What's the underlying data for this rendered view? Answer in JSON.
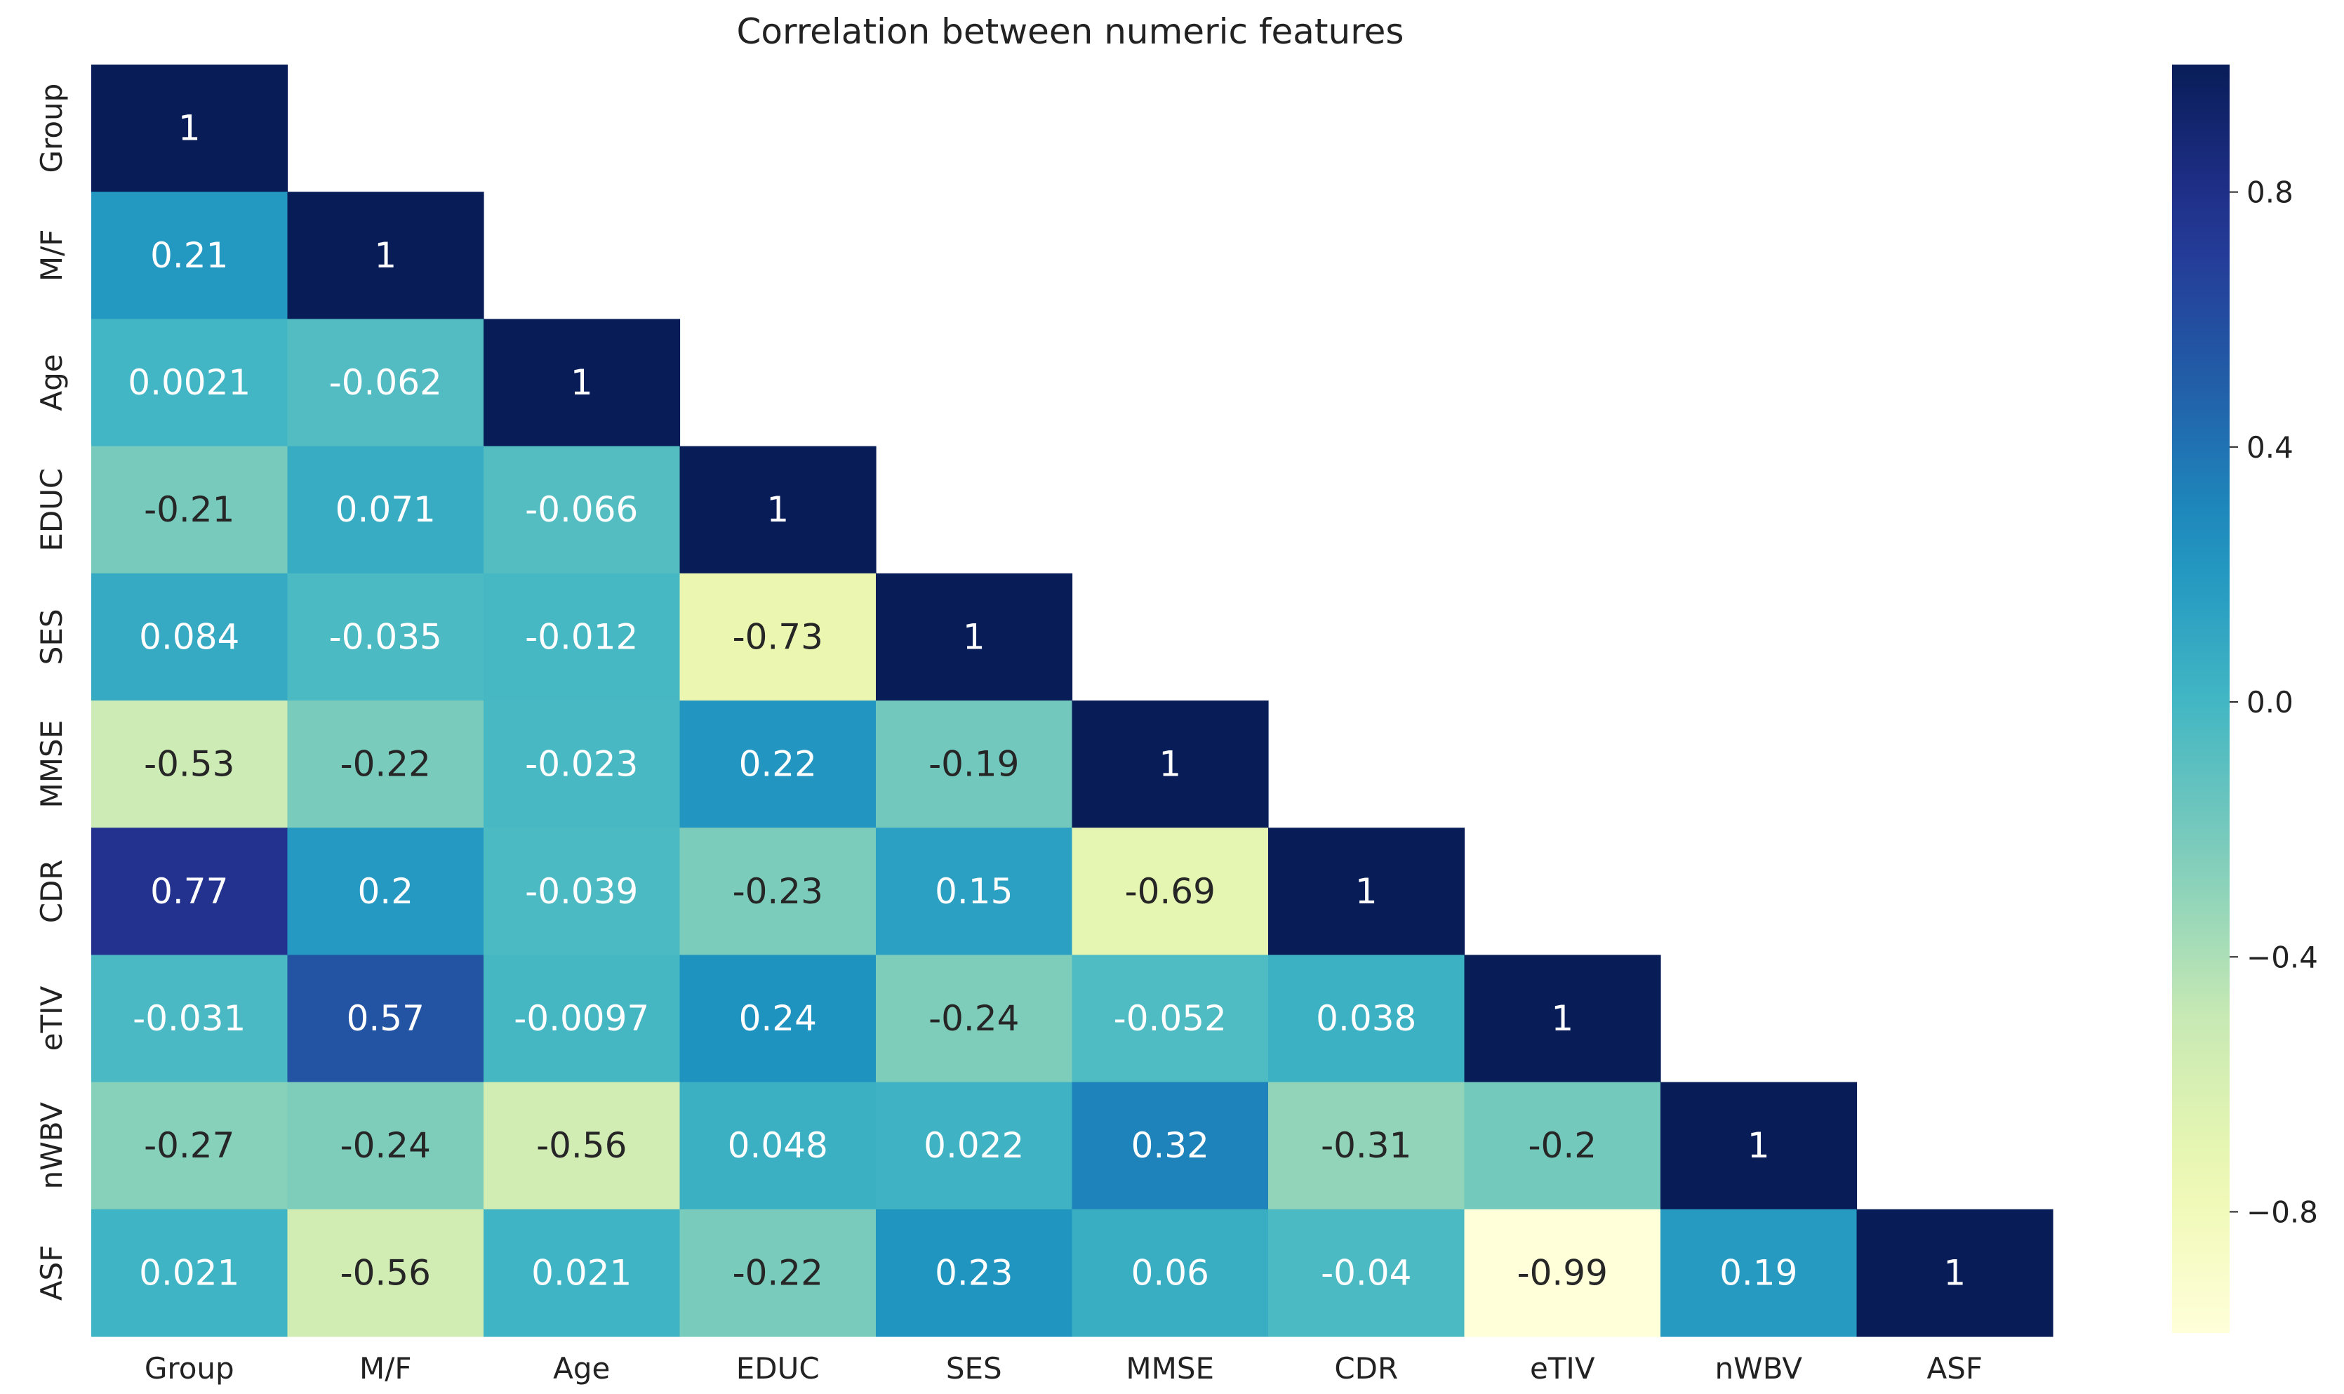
{
  "chart_data": {
    "type": "heatmap",
    "title": "Correlation between numeric features",
    "variables": [
      "Group",
      "M/F",
      "Age",
      "EDUC",
      "SES",
      "MMSE",
      "CDR",
      "eTIV",
      "nWBV",
      "ASF"
    ],
    "matrix_lower": [
      [
        1
      ],
      [
        0.21,
        1
      ],
      [
        0.0021,
        -0.062,
        1
      ],
      [
        -0.21,
        0.071,
        -0.066,
        1
      ],
      [
        0.084,
        -0.035,
        -0.012,
        -0.73,
        1
      ],
      [
        -0.53,
        -0.22,
        -0.023,
        0.22,
        -0.19,
        1
      ],
      [
        0.77,
        0.2,
        -0.039,
        -0.23,
        0.15,
        -0.69,
        1
      ],
      [
        -0.031,
        0.57,
        -0.0097,
        0.24,
        -0.24,
        -0.052,
        0.038,
        1
      ],
      [
        -0.27,
        -0.24,
        -0.56,
        0.048,
        0.022,
        0.32,
        -0.31,
        -0.2,
        1
      ],
      [
        0.021,
        -0.56,
        0.021,
        -0.22,
        0.23,
        0.06,
        -0.04,
        -0.99,
        0.19,
        1
      ]
    ],
    "colormap": "YlGnBu",
    "vmin": -0.99,
    "vmax": 1,
    "colorbar_ticks": [
      "0.8",
      "0.4",
      "0.0",
      "−0.4",
      "−0.8"
    ],
    "colorbar_tick_values": [
      0.8,
      0.4,
      0.0,
      -0.4,
      -0.8
    ],
    "xlabel": "",
    "ylabel": ""
  }
}
